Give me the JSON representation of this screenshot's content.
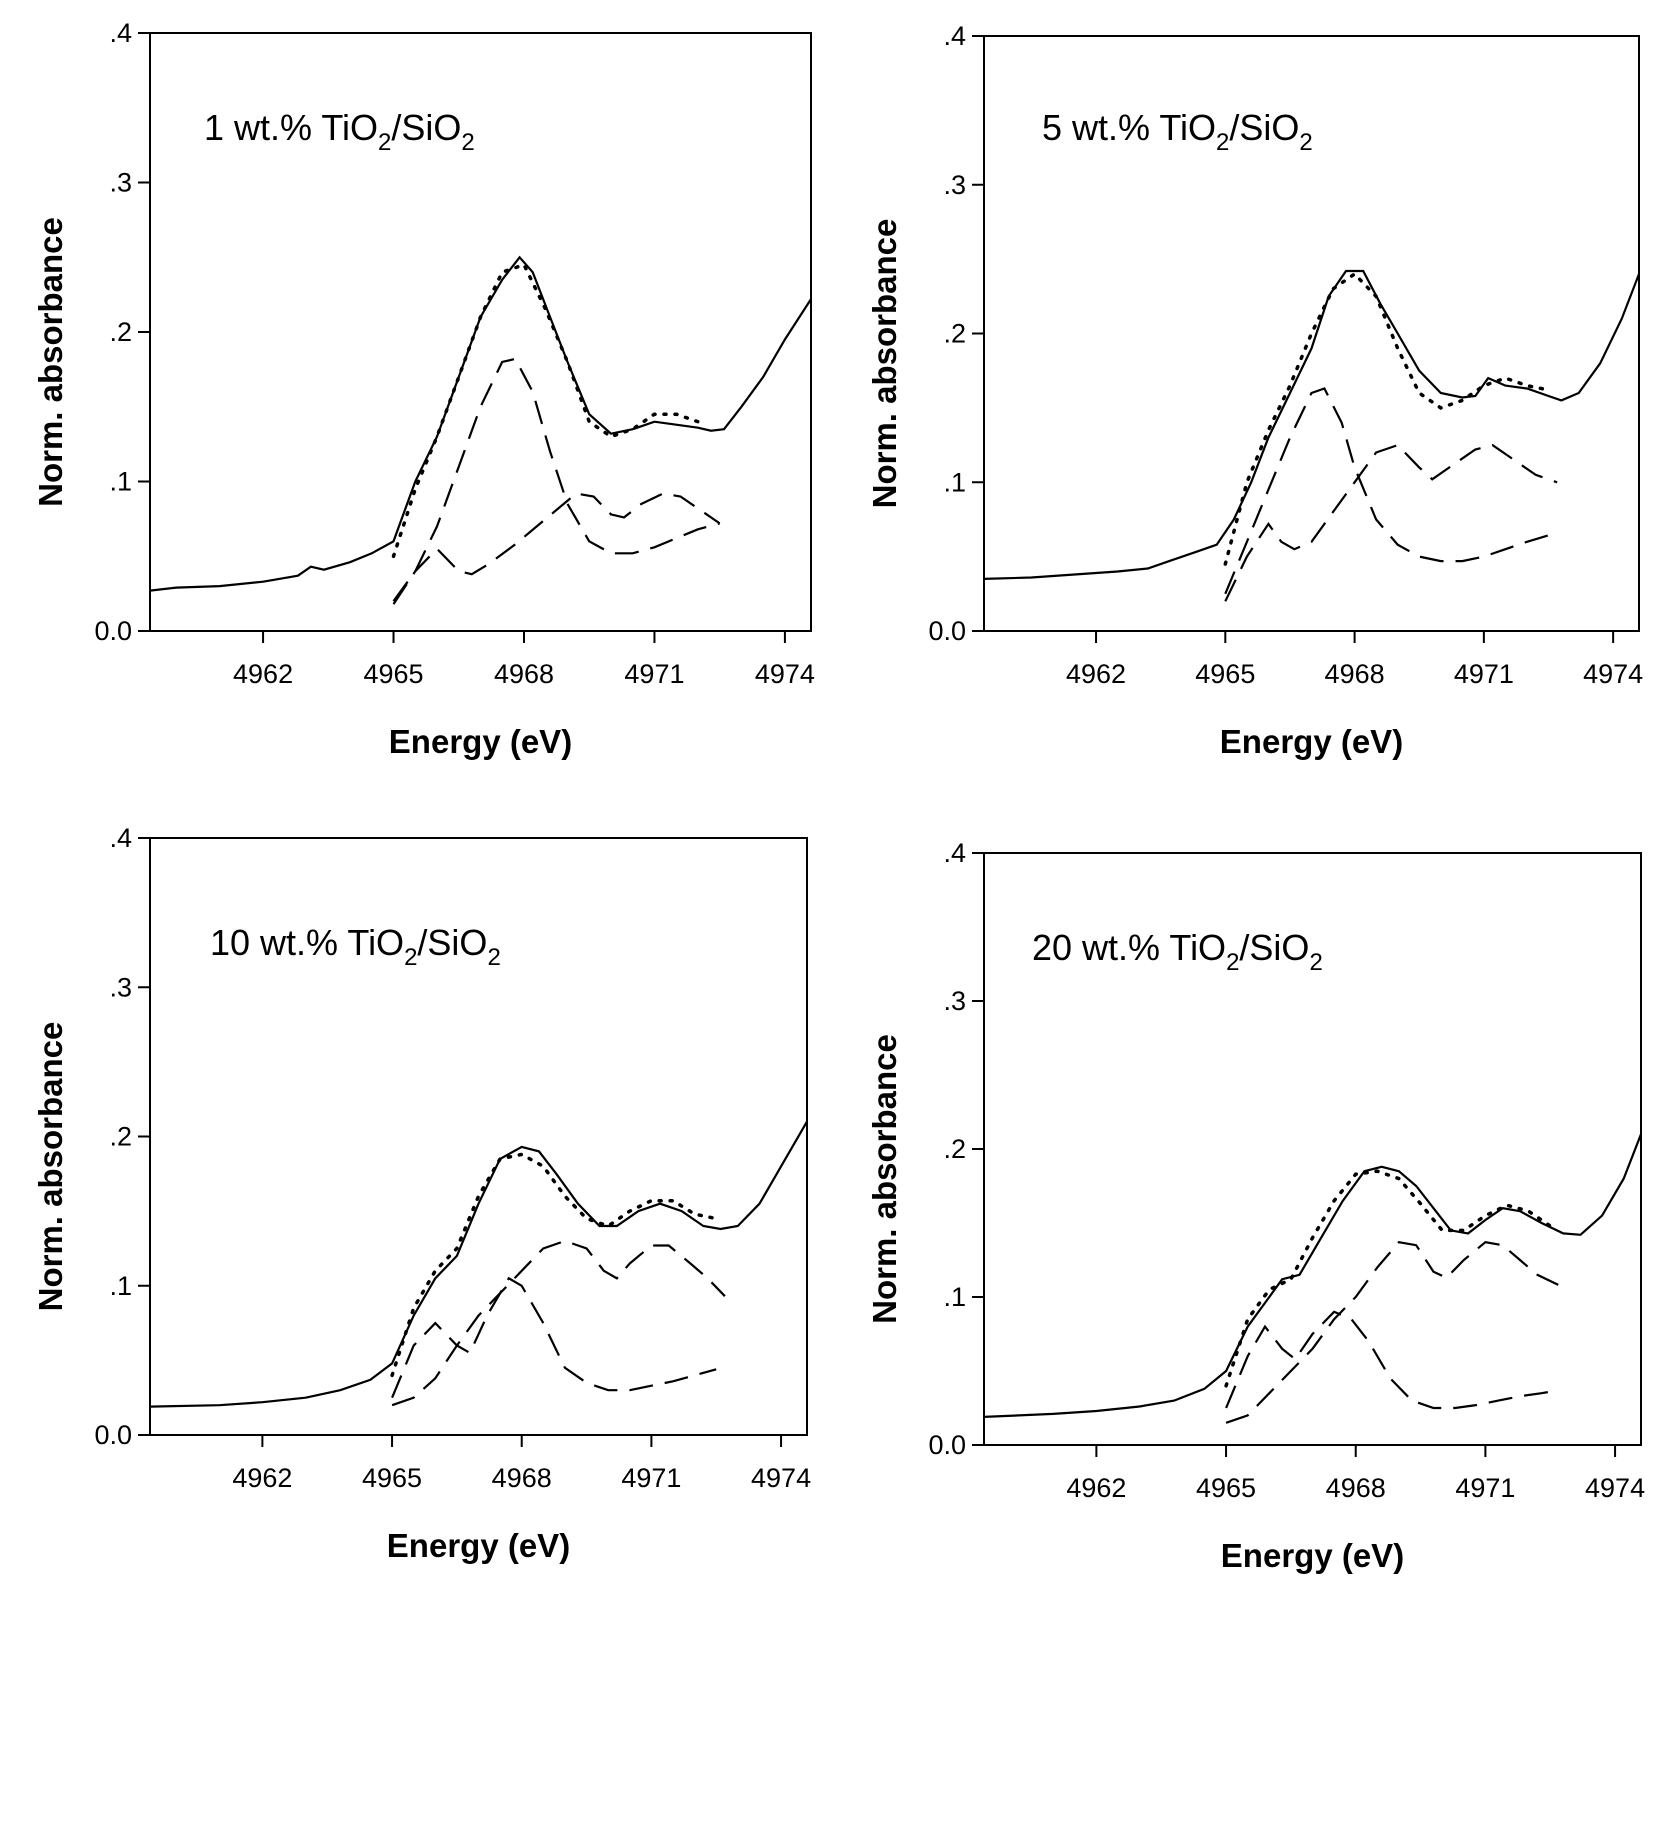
{
  "chart_data": [
    {
      "type": "line",
      "annotation": [
        "1 wt.% TiO",
        "2",
        "/SiO",
        "2"
      ],
      "x_label": "Energy (eV)",
      "y_label": "Norm. absorbance",
      "xlim": [
        4959.4,
        4974.6
      ],
      "xticks": [
        4962,
        4965,
        4968,
        4971,
        4974
      ],
      "ylim": [
        0,
        0.4
      ],
      "yticks": [
        {
          "value": 0,
          "label": "0.0"
        },
        {
          "value": 0.1,
          "label": ".1"
        },
        {
          "value": 0.2,
          "label": ".2"
        },
        {
          "value": 0.3,
          "label": ".3"
        },
        {
          "value": 0.4,
          "label": ".4"
        }
      ],
      "series": [
        {
          "style": "solid",
          "color": "#000000",
          "x": [
            4959.4,
            4960,
            4961,
            4962,
            4962.8,
            4963.1,
            4963.4,
            4964,
            4964.5,
            4965,
            4965.5,
            4966,
            4966.5,
            4967,
            4967.5,
            4967.9,
            4968.2,
            4968.6,
            4969,
            4969.5,
            4970,
            4970.5,
            4971,
            4971.5,
            4972,
            4972.3,
            4972.6,
            4973,
            4973.5,
            4974,
            4974.6
          ],
          "values": [
            0.027,
            0.029,
            0.03,
            0.033,
            0.037,
            0.043,
            0.041,
            0.046,
            0.052,
            0.06,
            0.1,
            0.13,
            0.17,
            0.21,
            0.235,
            0.25,
            0.24,
            0.21,
            0.18,
            0.145,
            0.132,
            0.135,
            0.14,
            0.138,
            0.136,
            0.134,
            0.135,
            0.15,
            0.17,
            0.195,
            0.222
          ]
        },
        {
          "style": "dotted",
          "color": "#000000",
          "x": [
            4965,
            4965.5,
            4966,
            4966.5,
            4967,
            4967.5,
            4968,
            4968.5,
            4969,
            4969.5,
            4970,
            4970.5,
            4971,
            4971.5,
            4972
          ],
          "values": [
            0.05,
            0.095,
            0.13,
            0.17,
            0.21,
            0.24,
            0.245,
            0.215,
            0.18,
            0.14,
            0.13,
            0.135,
            0.145,
            0.145,
            0.14
          ]
        },
        {
          "style": "dashed",
          "color": "#000000",
          "x": [
            4965,
            4965.5,
            4966,
            4966.5,
            4967,
            4967.5,
            4967.8,
            4968.2,
            4968.6,
            4969,
            4969.5,
            4970,
            4970.5,
            4971,
            4971.5,
            4972,
            4972.5
          ],
          "values": [
            0.02,
            0.04,
            0.07,
            0.11,
            0.15,
            0.18,
            0.182,
            0.16,
            0.12,
            0.085,
            0.06,
            0.052,
            0.052,
            0.056,
            0.062,
            0.068,
            0.072
          ]
        },
        {
          "style": "dashed",
          "color": "#000000",
          "x": [
            4965,
            4965.5,
            4966,
            4966.5,
            4966.8,
            4967.2,
            4967.8,
            4968.5,
            4969.2,
            4969.6,
            4970,
            4970.3,
            4970.7,
            4971.2,
            4971.6,
            4972,
            4972.5
          ],
          "values": [
            0.018,
            0.04,
            0.055,
            0.04,
            0.038,
            0.045,
            0.058,
            0.075,
            0.092,
            0.09,
            0.078,
            0.076,
            0.085,
            0.092,
            0.09,
            0.082,
            0.072
          ]
        }
      ]
    },
    {
      "type": "line",
      "annotation": [
        "5 wt.% TiO",
        "2",
        "/SiO",
        "2"
      ],
      "x_label": "Energy (eV)",
      "y_label": "Norm. absorbance",
      "xlim": [
        4959.4,
        4974.6
      ],
      "xticks": [
        4962,
        4965,
        4968,
        4971,
        4974
      ],
      "ylim": [
        0,
        0.4
      ],
      "yticks": [
        {
          "value": 0,
          "label": "0.0"
        },
        {
          "value": 0.1,
          "label": ".1"
        },
        {
          "value": 0.2,
          "label": ".2"
        },
        {
          "value": 0.3,
          "label": ".3"
        },
        {
          "value": 0.4,
          "label": ".4"
        }
      ],
      "series": [
        {
          "style": "solid",
          "color": "#000000",
          "x": [
            4959.4,
            4960.5,
            4961.5,
            4962.5,
            4963.2,
            4963.8,
            4964.3,
            4964.8,
            4965.2,
            4965.6,
            4966,
            4966.5,
            4967,
            4967.4,
            4967.8,
            4968.2,
            4968.6,
            4969,
            4969.5,
            4970,
            4970.5,
            4970.8,
            4971.1,
            4971.5,
            4972,
            4972.5,
            4972.8,
            4973.2,
            4973.7,
            4974.2,
            4974.6
          ],
          "values": [
            0.035,
            0.036,
            0.038,
            0.04,
            0.042,
            0.048,
            0.053,
            0.058,
            0.075,
            0.1,
            0.13,
            0.16,
            0.19,
            0.225,
            0.242,
            0.242,
            0.22,
            0.2,
            0.175,
            0.16,
            0.157,
            0.158,
            0.17,
            0.165,
            0.163,
            0.158,
            0.155,
            0.16,
            0.18,
            0.21,
            0.24
          ]
        },
        {
          "style": "dotted",
          "color": "#000000",
          "x": [
            4965,
            4965.5,
            4966,
            4966.5,
            4967,
            4967.5,
            4968,
            4968.5,
            4969,
            4969.5,
            4970,
            4970.5,
            4971,
            4971.5,
            4972,
            4972.5
          ],
          "values": [
            0.045,
            0.1,
            0.135,
            0.165,
            0.2,
            0.23,
            0.24,
            0.225,
            0.19,
            0.16,
            0.15,
            0.155,
            0.165,
            0.17,
            0.165,
            0.162
          ]
        },
        {
          "style": "dashed",
          "color": "#000000",
          "x": [
            4965,
            4965.5,
            4966,
            4966.5,
            4967,
            4967.3,
            4967.7,
            4968,
            4968.5,
            4969,
            4969.5,
            4970,
            4970.5,
            4971,
            4971.5,
            4972,
            4972.7
          ],
          "values": [
            0.025,
            0.06,
            0.095,
            0.13,
            0.16,
            0.163,
            0.14,
            0.11,
            0.075,
            0.058,
            0.05,
            0.047,
            0.047,
            0.05,
            0.055,
            0.06,
            0.066
          ]
        },
        {
          "style": "dashed",
          "color": "#000000",
          "x": [
            4965,
            4965.5,
            4966,
            4966.3,
            4966.6,
            4967,
            4967.5,
            4968,
            4968.5,
            4969,
            4969.5,
            4969.8,
            4970.2,
            4970.8,
            4971.2,
            4971.7,
            4972.2,
            4972.7
          ],
          "values": [
            0.02,
            0.05,
            0.072,
            0.06,
            0.055,
            0.06,
            0.08,
            0.1,
            0.12,
            0.125,
            0.11,
            0.102,
            0.11,
            0.122,
            0.125,
            0.115,
            0.105,
            0.1
          ]
        }
      ]
    },
    {
      "type": "line",
      "annotation": [
        "10 wt.% TiO",
        "2",
        "/SiO",
        "2"
      ],
      "x_label": "Energy (eV)",
      "y_label": "Norm. absorbance",
      "xlim": [
        4959.4,
        4974.6
      ],
      "xticks": [
        4962,
        4965,
        4968,
        4971,
        4974
      ],
      "ylim": [
        0,
        0.4
      ],
      "yticks": [
        {
          "value": 0,
          "label": "0.0"
        },
        {
          "value": 0.1,
          "label": ".1"
        },
        {
          "value": 0.2,
          "label": ".2"
        },
        {
          "value": 0.3,
          "label": ".3"
        },
        {
          "value": 0.4,
          "label": ".4"
        }
      ],
      "series": [
        {
          "style": "solid",
          "color": "#000000",
          "x": [
            4959.4,
            4961,
            4962,
            4963,
            4963.8,
            4964.5,
            4965,
            4965.5,
            4966,
            4966.5,
            4967,
            4967.5,
            4968,
            4968.4,
            4968.8,
            4969.3,
            4969.8,
            4970.2,
            4970.7,
            4971.2,
            4971.7,
            4972.2,
            4972.6,
            4973,
            4973.5,
            4974,
            4974.6
          ],
          "values": [
            0.019,
            0.02,
            0.022,
            0.025,
            0.03,
            0.037,
            0.048,
            0.08,
            0.105,
            0.12,
            0.155,
            0.185,
            0.193,
            0.19,
            0.175,
            0.155,
            0.14,
            0.14,
            0.15,
            0.155,
            0.15,
            0.14,
            0.138,
            0.14,
            0.155,
            0.18,
            0.21
          ]
        },
        {
          "style": "dotted",
          "color": "#000000",
          "x": [
            4965,
            4965.5,
            4966,
            4966.5,
            4967,
            4967.5,
            4968,
            4968.5,
            4969,
            4969.5,
            4970,
            4970.5,
            4971,
            4971.5,
            4972,
            4972.5
          ],
          "values": [
            0.04,
            0.085,
            0.11,
            0.125,
            0.16,
            0.185,
            0.188,
            0.18,
            0.16,
            0.145,
            0.14,
            0.15,
            0.157,
            0.157,
            0.148,
            0.145
          ]
        },
        {
          "style": "dashed",
          "color": "#000000",
          "x": [
            4965,
            4965.5,
            4966,
            4966.5,
            4967,
            4967.5,
            4968,
            4968.5,
            4969,
            4969.5,
            4969.9,
            4970.2,
            4970.5,
            4971,
            4971.4,
            4971.9,
            4972.3,
            4972.7
          ],
          "values": [
            0.02,
            0.025,
            0.038,
            0.06,
            0.08,
            0.095,
            0.11,
            0.125,
            0.13,
            0.125,
            0.11,
            0.105,
            0.115,
            0.127,
            0.127,
            0.115,
            0.105,
            0.093
          ]
        },
        {
          "style": "dashed",
          "color": "#000000",
          "x": [
            4965,
            4965.5,
            4966,
            4966.5,
            4966.8,
            4967.2,
            4967.7,
            4968,
            4968.5,
            4969,
            4969.5,
            4970,
            4970.5,
            4971,
            4971.5,
            4972,
            4972.5
          ],
          "values": [
            0.025,
            0.06,
            0.075,
            0.06,
            0.055,
            0.08,
            0.105,
            0.1,
            0.075,
            0.045,
            0.035,
            0.03,
            0.03,
            0.033,
            0.036,
            0.04,
            0.044
          ]
        }
      ]
    },
    {
      "type": "line",
      "annotation": [
        "20 wt.% TiO",
        "2",
        "/SiO",
        "2"
      ],
      "x_label": "Energy (eV)",
      "y_label": "Norm. absorbance",
      "xlim": [
        4959.4,
        4974.6
      ],
      "xticks": [
        4962,
        4965,
        4968,
        4971,
        4974
      ],
      "ylim": [
        0,
        0.4
      ],
      "yticks": [
        {
          "value": 0,
          "label": "0.0"
        },
        {
          "value": 0.1,
          "label": ".1"
        },
        {
          "value": 0.2,
          "label": ".2"
        },
        {
          "value": 0.3,
          "label": ".3"
        },
        {
          "value": 0.4,
          "label": ".4"
        }
      ],
      "series": [
        {
          "style": "solid",
          "color": "#000000",
          "x": [
            4959.4,
            4961,
            4962,
            4963,
            4963.8,
            4964.5,
            4965,
            4965.5,
            4966,
            4966.3,
            4966.7,
            4967.2,
            4967.7,
            4968.2,
            4968.6,
            4969,
            4969.4,
            4969.8,
            4970.2,
            4970.6,
            4971,
            4971.4,
            4971.8,
            4972.3,
            4972.8,
            4973.2,
            4973.7,
            4974.2,
            4974.6
          ],
          "values": [
            0.019,
            0.021,
            0.023,
            0.026,
            0.03,
            0.038,
            0.05,
            0.08,
            0.1,
            0.112,
            0.115,
            0.14,
            0.165,
            0.185,
            0.188,
            0.185,
            0.175,
            0.16,
            0.145,
            0.143,
            0.152,
            0.16,
            0.158,
            0.15,
            0.143,
            0.142,
            0.155,
            0.18,
            0.21
          ]
        },
        {
          "style": "dotted",
          "color": "#000000",
          "x": [
            4965,
            4965.5,
            4966,
            4966.5,
            4967,
            4967.5,
            4968,
            4968.5,
            4969,
            4969.5,
            4970,
            4970.5,
            4971,
            4971.5,
            4972,
            4972.5
          ],
          "values": [
            0.04,
            0.085,
            0.105,
            0.112,
            0.14,
            0.165,
            0.183,
            0.185,
            0.18,
            0.163,
            0.145,
            0.145,
            0.155,
            0.162,
            0.158,
            0.148
          ]
        },
        {
          "style": "dashed",
          "color": "#000000",
          "x": [
            4965,
            4965.5,
            4966,
            4966.5,
            4967,
            4967.5,
            4968,
            4968.5,
            4969,
            4969.4,
            4969.8,
            4970.1,
            4970.5,
            4971,
            4971.4,
            4971.8,
            4972.2,
            4972.7
          ],
          "values": [
            0.015,
            0.02,
            0.035,
            0.05,
            0.065,
            0.085,
            0.1,
            0.12,
            0.137,
            0.135,
            0.117,
            0.113,
            0.125,
            0.137,
            0.135,
            0.125,
            0.115,
            0.108
          ]
        },
        {
          "style": "dashed",
          "color": "#000000",
          "x": [
            4965,
            4965.5,
            4965.9,
            4966.3,
            4966.6,
            4967,
            4967.5,
            4967.9,
            4968.3,
            4968.8,
            4969.3,
            4969.8,
            4970.3,
            4970.8,
            4971.3,
            4971.8,
            4972.3,
            4972.7
          ],
          "values": [
            0.025,
            0.06,
            0.08,
            0.065,
            0.058,
            0.075,
            0.09,
            0.085,
            0.07,
            0.045,
            0.03,
            0.025,
            0.025,
            0.027,
            0.03,
            0.033,
            0.035,
            0.037
          ]
        }
      ]
    }
  ]
}
